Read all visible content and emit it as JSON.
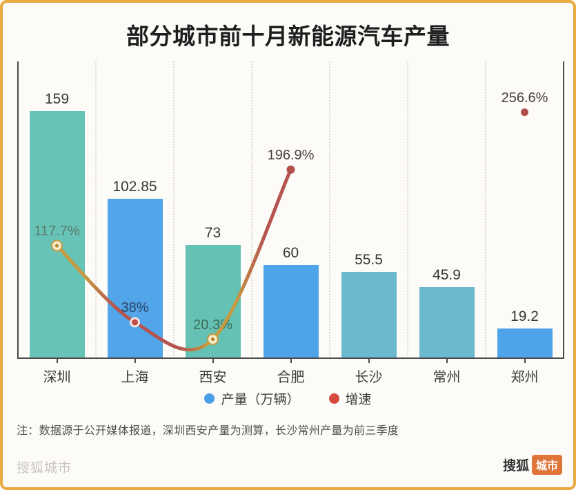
{
  "title": "部分城市前十月新能源汽车产量",
  "chart_data": {
    "type": "bar",
    "title": "部分城市前十月新能源汽车产量",
    "categories": [
      "深圳",
      "上海",
      "西安",
      "合肥",
      "长沙",
      "常州",
      "郑州"
    ],
    "series": [
      {
        "name": "产量（万辆）",
        "type": "bar",
        "values": [
          159,
          102.85,
          73,
          60,
          55.5,
          45.9,
          19.2
        ],
        "value_labels": [
          "159",
          "102.85",
          "73",
          "60",
          "55.5",
          "45.9",
          "19.2"
        ],
        "bar_colors": [
          "#68c3b7",
          "#51a5e8",
          "#65c1b3",
          "#4fa3e8",
          "#6cb9cf",
          "#6cb9cf",
          "#4fa3e8"
        ]
      },
      {
        "name": "增速",
        "type": "line",
        "points": [
          {
            "category": "深圳",
            "value": 117.7,
            "label": "117.7%",
            "label_color": "#5a7d6e",
            "marker": "ring-gold"
          },
          {
            "category": "上海",
            "value": 38,
            "label": "38%",
            "label_color": "#2d4368",
            "marker": "ring-red"
          },
          {
            "category": "西安",
            "value": 20.3,
            "label": "20.3%",
            "label_color": "#3d6b55",
            "marker": "ring-gold"
          },
          {
            "category": "合肥",
            "value": 196.9,
            "label": "196.9%",
            "label_color": "#45413d",
            "marker": "dot-red"
          },
          {
            "category": "郑州",
            "value": 256.6,
            "label": "256.6%",
            "label_color": "#45413d",
            "marker": "dot-red",
            "isolated": true
          }
        ],
        "line_colors": {
          "red": "#b5534f",
          "gold": "#c79a40"
        }
      }
    ],
    "grid": "vertical-dotted",
    "legend_position": "bottom-center"
  },
  "legend": {
    "items": [
      {
        "label": "产量（万辆）",
        "color": "#4aa0e8"
      },
      {
        "label": "增速",
        "color": "#d6493f"
      }
    ]
  },
  "note": "注：数据源于公开媒体报道，深圳西安产量为测算，长沙常州产量为前三季度",
  "footer": {
    "watermark": "搜狐城市",
    "logo_text": "搜狐",
    "logo_badge": "城市",
    "logo_color": "#e0753a"
  },
  "frame_color": "#e9a93e"
}
